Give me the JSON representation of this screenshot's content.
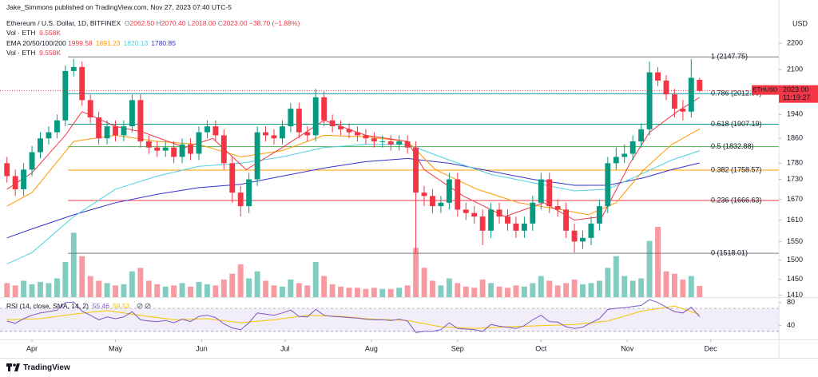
{
  "chart_data": {
    "type": "candlestick",
    "header": "Jake_Simmons published on TradingView.com, Nov 27, 2023 07:40 UTC-5",
    "title": "Ethereum / U.S. Dollar, 1D, BITFINEX",
    "ohlc_names": [
      "O",
      "H",
      "L",
      "C"
    ],
    "ohlc_labels": [
      "2062.50",
      "2070.40",
      "2018.00",
      "2023.00"
    ],
    "change": "−38.70 (−1.88%)",
    "currency": "USD",
    "symbol": "ETHUSD",
    "countdown": "11:19:27",
    "brand": "TradingView",
    "up_color": "#089981",
    "down_color": "#f23645",
    "xlim": [
      -11.5,
      268.5
    ],
    "xticks": [
      {
        "value": 0,
        "label": "Apr"
      },
      {
        "value": 30,
        "label": "May"
      },
      {
        "value": 61,
        "label": "Jun"
      },
      {
        "value": 91,
        "label": "Jul"
      },
      {
        "value": 122,
        "label": "Aug"
      },
      {
        "value": 153,
        "label": "Sep"
      },
      {
        "value": 183,
        "label": "Oct"
      },
      {
        "value": 214,
        "label": "Nov"
      },
      {
        "value": 244,
        "label": "Dec"
      }
    ],
    "ylim": [
      1405,
      2375
    ],
    "log_scale": true,
    "yticks": [
      2200,
      2100,
      1940,
      1860,
      1780,
      1730,
      1670,
      1610,
      1550,
      1500,
      1450,
      1410
    ],
    "x": [
      -9,
      -6,
      -3,
      0,
      3,
      6,
      9,
      12,
      15,
      18,
      21,
      24,
      27,
      30,
      33,
      36,
      39,
      42,
      45,
      48,
      51,
      54,
      57,
      60,
      63,
      66,
      69,
      72,
      75,
      78,
      81,
      84,
      87,
      90,
      93,
      96,
      99,
      102,
      105,
      108,
      111,
      114,
      117,
      120,
      123,
      126,
      129,
      132,
      135,
      138,
      141,
      144,
      147,
      150,
      153,
      156,
      159,
      162,
      165,
      168,
      171,
      174,
      177,
      180,
      183,
      186,
      189,
      192,
      195,
      198,
      201,
      204,
      207,
      210,
      213,
      216,
      219,
      222,
      225,
      228,
      231,
      234,
      237,
      240
    ],
    "open": [
      1780,
      1740,
      1700,
      1760,
      1815,
      1860,
      1880,
      1920,
      2095,
      2110,
      1990,
      1930,
      1860,
      1900,
      1870,
      1900,
      1990,
      1850,
      1830,
      1820,
      1830,
      1800,
      1840,
      1810,
      1880,
      1900,
      1870,
      1780,
      1690,
      1650,
      1730,
      1880,
      1870,
      1860,
      1900,
      1960,
      1880,
      1870,
      2000,
      1920,
      1900,
      1890,
      1880,
      1870,
      1860,
      1850,
      1850,
      1840,
      1850,
      1830,
      1690,
      1680,
      1650,
      1660,
      1730,
      1640,
      1630,
      1620,
      1580,
      1640,
      1620,
      1600,
      1580,
      1600,
      1660,
      1730,
      1650,
      1640,
      1580,
      1550,
      1560,
      1600,
      1650,
      1780,
      1800,
      1810,
      1850,
      1890,
      2090,
      2060,
      2010,
      1960,
      1950,
      2062.5
    ],
    "high": [
      1800,
      1760,
      1780,
      1835,
      1880,
      1900,
      1940,
      2115,
      2140,
      2130,
      2010,
      1950,
      1920,
      1920,
      1920,
      2010,
      2010,
      1870,
      1850,
      1850,
      1850,
      1860,
      1860,
      1900,
      1920,
      1920,
      1890,
      1800,
      1710,
      1750,
      1900,
      1900,
      1890,
      1920,
      1980,
      1980,
      1900,
      2030,
      2020,
      1940,
      1920,
      1910,
      1900,
      1890,
      1880,
      1870,
      1870,
      1870,
      1870,
      1850,
      1710,
      1700,
      1680,
      1750,
      1750,
      1660,
      1650,
      1640,
      1660,
      1660,
      1640,
      1620,
      1620,
      1680,
      1750,
      1750,
      1670,
      1660,
      1600,
      1580,
      1620,
      1670,
      1800,
      1830,
      1840,
      1870,
      1910,
      2130,
      2110,
      2080,
      2030,
      1990,
      2140,
      2070.4
    ],
    "low": [
      1720,
      1680,
      1680,
      1740,
      1795,
      1840,
      1860,
      1900,
      2075,
      1970,
      1910,
      1840,
      1840,
      1850,
      1850,
      1880,
      1830,
      1810,
      1800,
      1800,
      1780,
      1780,
      1790,
      1790,
      1860,
      1850,
      1760,
      1660,
      1620,
      1630,
      1710,
      1850,
      1840,
      1840,
      1880,
      1860,
      1850,
      1850,
      1900,
      1880,
      1870,
      1860,
      1850,
      1840,
      1830,
      1830,
      1820,
      1820,
      1810,
      1520,
      1650,
      1630,
      1630,
      1640,
      1620,
      1610,
      1600,
      1540,
      1560,
      1600,
      1580,
      1560,
      1560,
      1580,
      1640,
      1630,
      1620,
      1560,
      1520,
      1530,
      1540,
      1580,
      1630,
      1760,
      1780,
      1790,
      1830,
      1870,
      2040,
      1990,
      1930,
      1920,
      1930,
      2018
    ],
    "close": [
      1740,
      1700,
      1760,
      1815,
      1860,
      1880,
      1920,
      2095,
      2110,
      1990,
      1930,
      1860,
      1900,
      1870,
      1900,
      1990,
      1850,
      1830,
      1820,
      1830,
      1800,
      1840,
      1810,
      1880,
      1900,
      1870,
      1780,
      1690,
      1650,
      1730,
      1880,
      1870,
      1860,
      1900,
      1960,
      1880,
      1870,
      2000,
      1920,
      1900,
      1890,
      1880,
      1870,
      1860,
      1850,
      1850,
      1840,
      1850,
      1830,
      1690,
      1680,
      1650,
      1660,
      1730,
      1640,
      1630,
      1620,
      1580,
      1640,
      1620,
      1600,
      1580,
      1600,
      1660,
      1730,
      1650,
      1640,
      1580,
      1550,
      1560,
      1600,
      1650,
      1780,
      1800,
      1810,
      1850,
      1890,
      2090,
      2060,
      2010,
      1960,
      1950,
      2070,
      2023
    ],
    "volume": {
      "title": "Vol · ETH",
      "last_label": "9.558K",
      "values": [
        12,
        10,
        14,
        11,
        13,
        12,
        16,
        30,
        55,
        35,
        18,
        14,
        12,
        10,
        11,
        22,
        25,
        14,
        11,
        9,
        10,
        12,
        9,
        13,
        11,
        10,
        15,
        20,
        28,
        16,
        22,
        14,
        10,
        9,
        15,
        12,
        10,
        30,
        18,
        11,
        9,
        8,
        8,
        7,
        8,
        7,
        7,
        8,
        10,
        42,
        25,
        14,
        10,
        16,
        12,
        9,
        8,
        15,
        12,
        9,
        8,
        10,
        9,
        12,
        18,
        14,
        10,
        12,
        15,
        11,
        12,
        14,
        25,
        35,
        18,
        14,
        16,
        48,
        60,
        22,
        20,
        15,
        18,
        9.558
      ]
    },
    "ema": {
      "title": "EMA 20/50/100/200",
      "series": [
        {
          "color": "#f23645",
          "x": [
            -9,
            0,
            12,
            18,
            30,
            40,
            55,
            65,
            77,
            90,
            105,
            120,
            135,
            141,
            155,
            170,
            184,
            195,
            205,
            215,
            222,
            232,
            240
          ],
          "values": [
            1700,
            1750,
            1870,
            1950,
            1900,
            1880,
            1830,
            1860,
            1760,
            1830,
            1920,
            1870,
            1850,
            1760,
            1680,
            1620,
            1660,
            1610,
            1620,
            1780,
            1880,
            1950,
            1999.58
          ]
        },
        {
          "color": "#ff9800",
          "x": [
            -9,
            0,
            15,
            30,
            45,
            60,
            75,
            90,
            105,
            120,
            135,
            145,
            160,
            175,
            190,
            200,
            210,
            220,
            230,
            240
          ],
          "values": [
            1650,
            1690,
            1850,
            1870,
            1850,
            1840,
            1800,
            1820,
            1870,
            1865,
            1850,
            1760,
            1700,
            1660,
            1640,
            1625,
            1660,
            1760,
            1840,
            1891.23
          ]
        },
        {
          "color": "#4dd0e1",
          "x": [
            -9,
            0,
            15,
            30,
            45,
            60,
            75,
            90,
            105,
            120,
            135,
            150,
            165,
            180,
            195,
            207,
            220,
            230,
            240
          ],
          "values": [
            1490,
            1520,
            1620,
            1700,
            1740,
            1770,
            1780,
            1800,
            1830,
            1840,
            1840,
            1790,
            1745,
            1720,
            1695,
            1700,
            1750,
            1790,
            1820.13
          ]
        },
        {
          "color": "#3333cc",
          "x": [
            -9,
            0,
            15,
            30,
            45,
            60,
            75,
            90,
            105,
            120,
            135,
            150,
            165,
            180,
            195,
            207,
            220,
            230,
            240
          ],
          "values": [
            1560,
            1585,
            1625,
            1660,
            1685,
            1705,
            1715,
            1740,
            1765,
            1785,
            1795,
            1780,
            1755,
            1730,
            1712,
            1712,
            1735,
            1760,
            1780.85
          ]
        }
      ]
    },
    "fibonacci": {
      "levels": [
        {
          "value": 2147.75,
          "label": "1 (2147.75)",
          "color": "#787b86"
        },
        {
          "value": 2012.9,
          "label": "0.786 (2012.90)",
          "color": "#0097a7"
        },
        {
          "value": 1907.19,
          "label": "0.618 (1907.19)",
          "color": "#089981"
        },
        {
          "value": 1832.88,
          "label": "0.5 (1832.88)",
          "color": "#4caf50"
        },
        {
          "value": 1758.57,
          "label": "0.382 (1758.57)",
          "color": "#ff9800"
        },
        {
          "value": 1666.63,
          "label": "0.236 (1666.63)",
          "color": "#f23645"
        },
        {
          "value": 1518.01,
          "label": "0 (1518.01)",
          "color": "#787b86"
        }
      ]
    },
    "rsi": {
      "title": "RSI (14, close, SMA, 14, 2)",
      "color": "#7e57c2",
      "ylim": [
        16,
        88
      ],
      "yticks": [
        80,
        40
      ],
      "band": [
        30,
        70
      ],
      "values": [
        48,
        44,
        52,
        58,
        62,
        64,
        67,
        80,
        81,
        65,
        58,
        50,
        55,
        52,
        55,
        64,
        50,
        48,
        47,
        49,
        45,
        51,
        47,
        56,
        58,
        54,
        43,
        36,
        33,
        45,
        62,
        60,
        58,
        62,
        67,
        56,
        55,
        68,
        58,
        56,
        55,
        54,
        53,
        51,
        50,
        50,
        49,
        51,
        48,
        28,
        30,
        30,
        33,
        45,
        35,
        34,
        33,
        30,
        42,
        39,
        37,
        35,
        40,
        50,
        58,
        47,
        46,
        38,
        35,
        37,
        45,
        52,
        68,
        70,
        71,
        73,
        75,
        85,
        80,
        72,
        64,
        62,
        72,
        55.46
      ],
      "sma": {
        "color": "#f7c500",
        "x": [
          -9,
          3,
          15,
          27,
          39,
          51,
          63,
          75,
          87,
          99,
          111,
          123,
          135,
          147,
          159,
          171,
          183,
          195,
          207,
          219,
          231,
          240
        ],
        "values": [
          50,
          52,
          60,
          66,
          58,
          50,
          52,
          45,
          50,
          58,
          56,
          51,
          49,
          38,
          35,
          38,
          40,
          42,
          48,
          65,
          74,
          59.53
        ]
      }
    }
  }
}
